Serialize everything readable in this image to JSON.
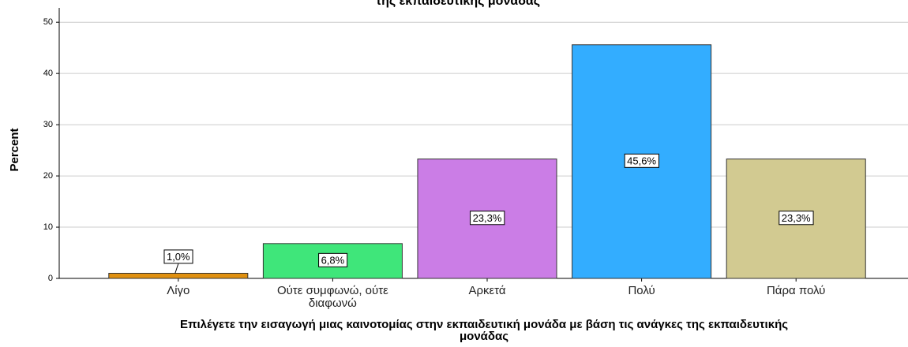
{
  "chart_data": {
    "type": "bar",
    "title": "της εκπαιδευτικής μονάδας",
    "x_label": "Επιλέγετε την εισαγωγή μιας καινοτομίας στην εκπαιδευτική μονάδα με βάση τις ανάγκες της εκπαιδευτικής μονάδας",
    "y_label": "Percent",
    "categories": [
      "Λίγο",
      "Ούτε συμφωνώ, ούτε διαφωνώ",
      "Αρκετά",
      "Πολύ",
      "Πάρα πολύ"
    ],
    "values": [
      1.0,
      6.8,
      23.3,
      45.6,
      23.3
    ],
    "value_labels": [
      "1,0%",
      "6,8%",
      "23,3%",
      "45,6%",
      "23,3%"
    ],
    "colors": [
      "#e0900f",
      "#3fe67a",
      "#cb7de6",
      "#33adff",
      "#d2ca91"
    ],
    "ylim": [
      0,
      52.8
    ],
    "yticks": [
      0,
      10,
      20,
      30,
      40,
      50
    ],
    "grid": true
  }
}
